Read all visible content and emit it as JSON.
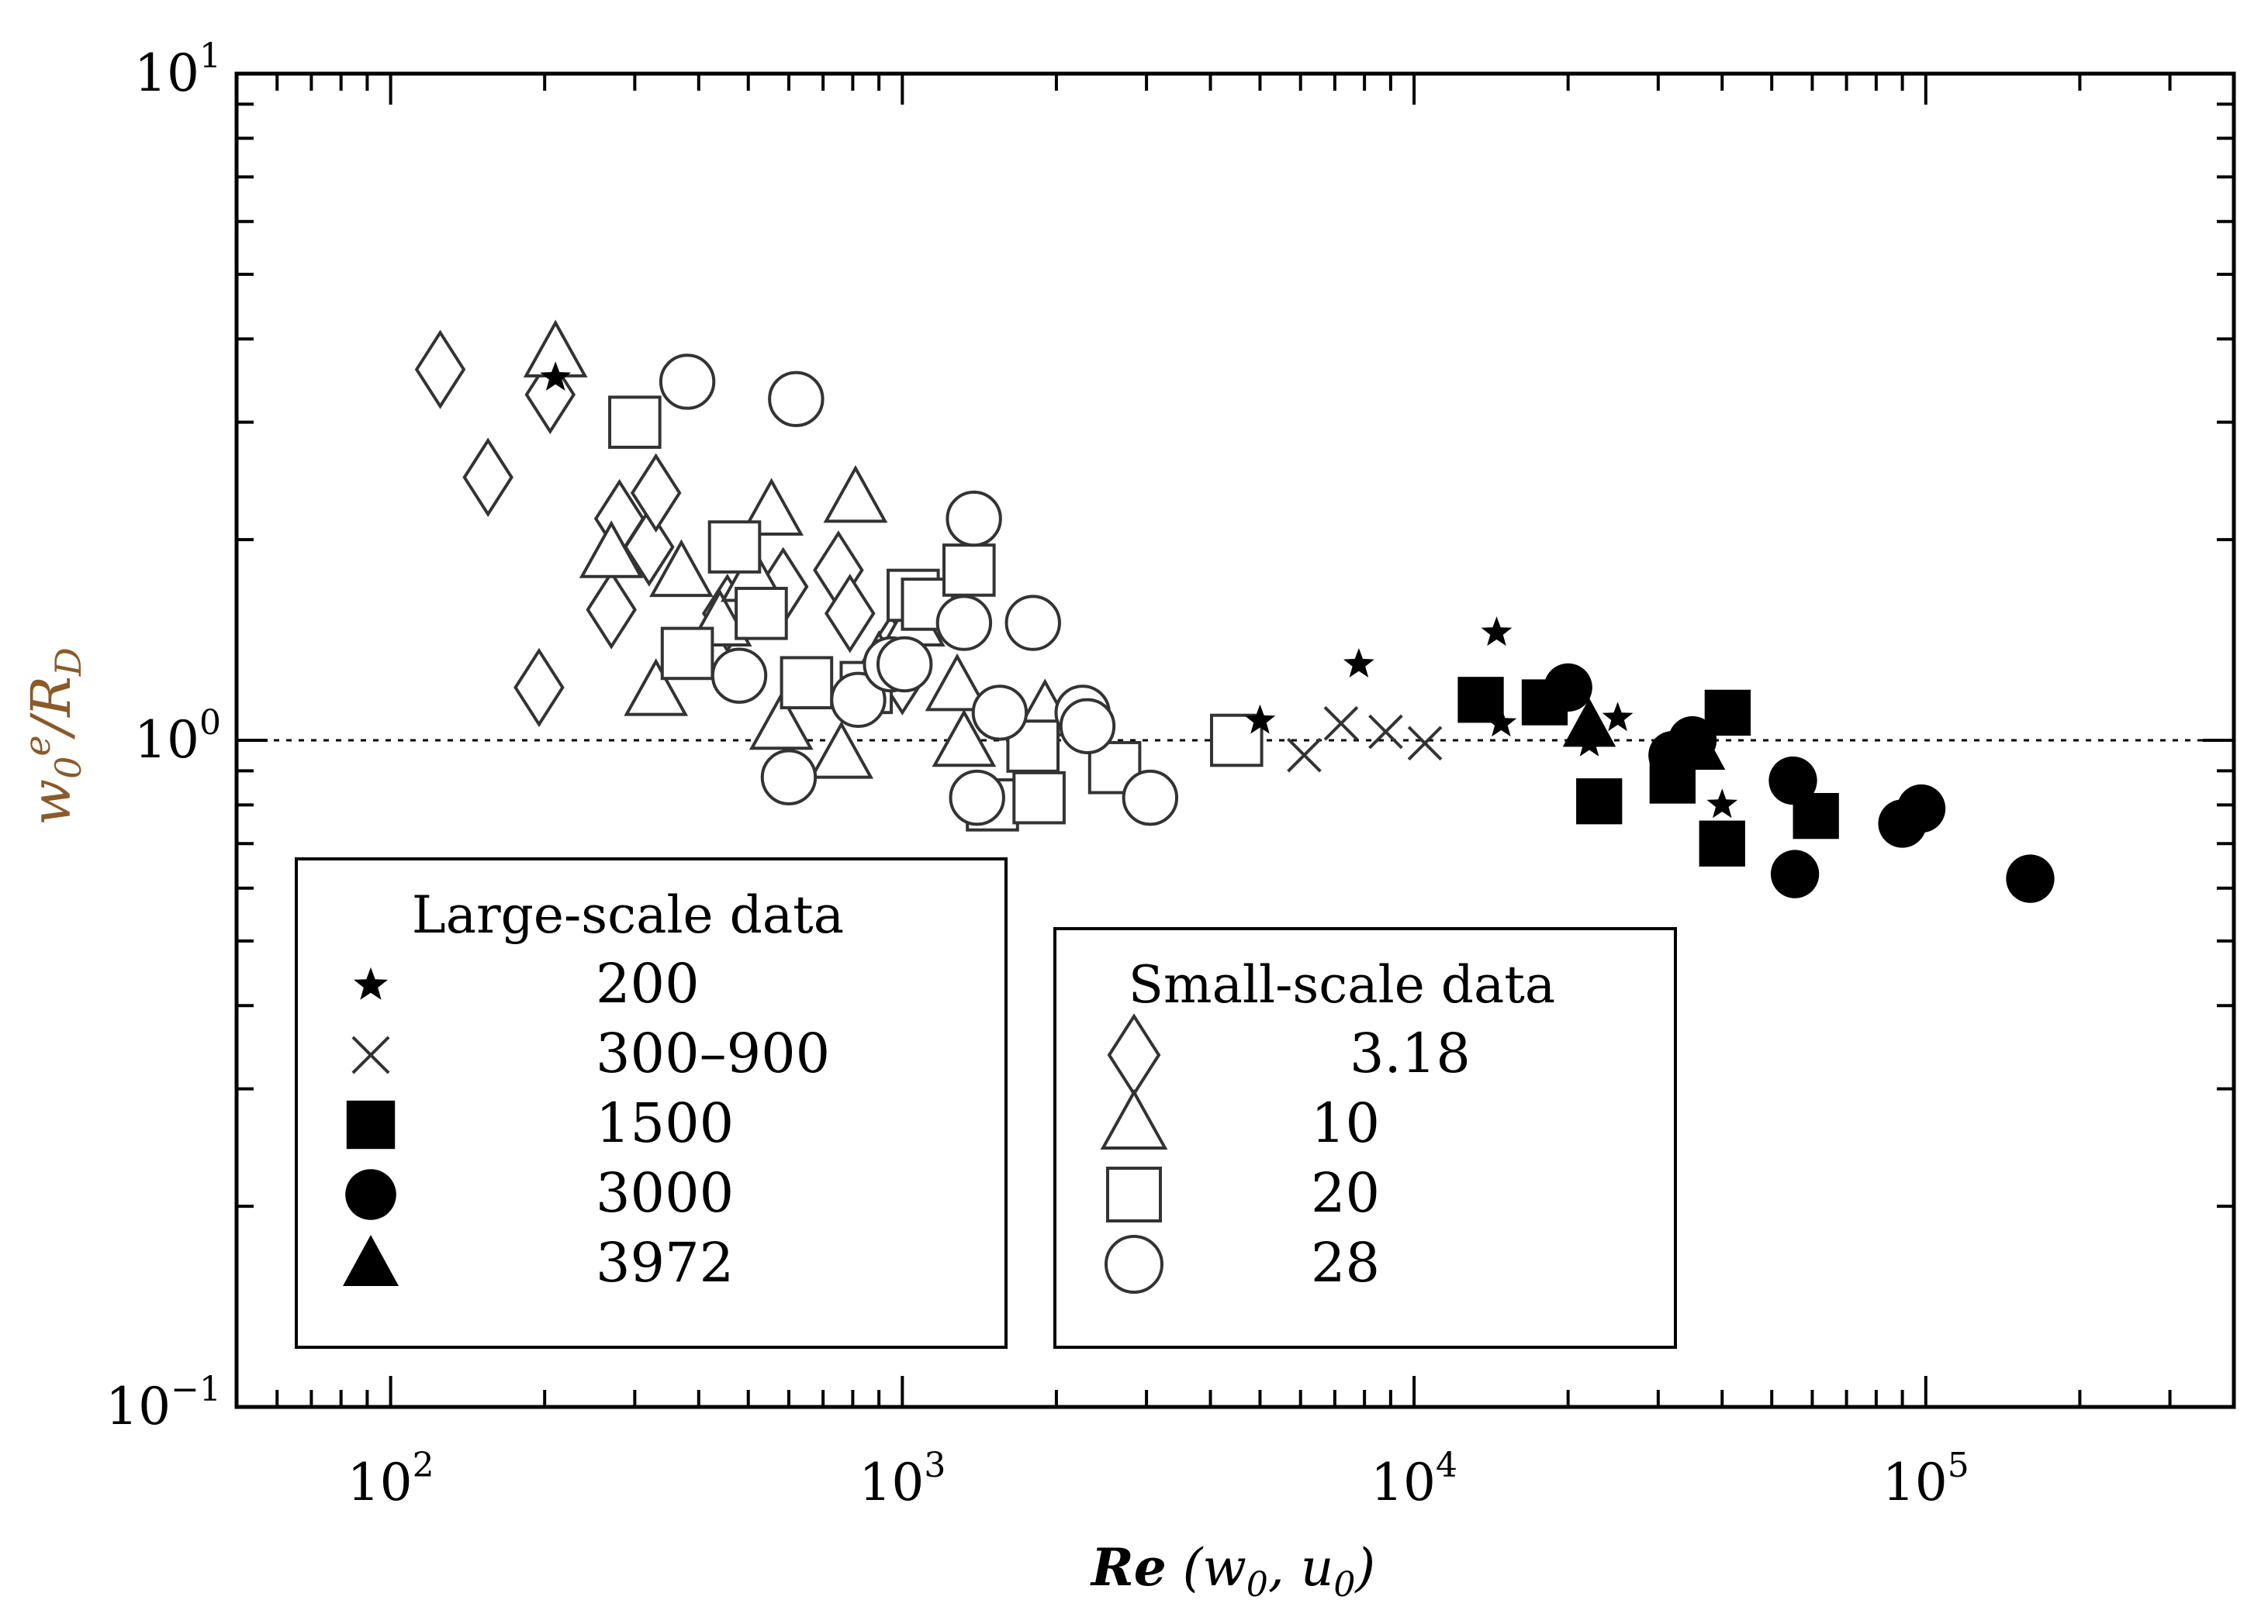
{
  "chart_data": {
    "type": "scatter",
    "title": "",
    "xlabel": "Re (w0, u0)",
    "ylabel": "w0e/RD",
    "xscale": "log",
    "yscale": "log",
    "xlim": [
      50,
      400000
    ],
    "ylim": [
      0.1,
      10
    ],
    "x_ticks": [
      {
        "base": "10",
        "exp": "2",
        "value": 100
      },
      {
        "base": "10",
        "exp": "3",
        "value": 1000
      },
      {
        "base": "10",
        "exp": "4",
        "value": 10000
      },
      {
        "base": "10",
        "exp": "5",
        "value": 100000
      }
    ],
    "y_ticks": [
      {
        "base": "10",
        "exp": "−1",
        "value": 0.1
      },
      {
        "base": "10",
        "exp": "0",
        "value": 1
      },
      {
        "base": "10",
        "exp": "1",
        "value": 10
      }
    ],
    "reference_line": {
      "y": 1.0,
      "style": "dotted"
    },
    "legend_large": {
      "title": "Large-scale data",
      "entries": [
        {
          "marker": "star",
          "label": "200"
        },
        {
          "marker": "cross",
          "label": "300–900"
        },
        {
          "marker": "square-filled",
          "label": "1500"
        },
        {
          "marker": "circle-filled",
          "label": "3000"
        },
        {
          "marker": "triangle-filled",
          "label": "3972"
        }
      ]
    },
    "legend_small": {
      "title": "Small-scale data",
      "entries": [
        {
          "marker": "diamond-open",
          "label": "3.18"
        },
        {
          "marker": "triangle-open",
          "label": "10"
        },
        {
          "marker": "square-open",
          "label": "20"
        },
        {
          "marker": "circle-open",
          "label": "28"
        }
      ]
    },
    "series": [
      {
        "name": "200",
        "marker": "star",
        "points": [
          [
            210,
            3.5
          ],
          [
            5000,
            1.07
          ],
          [
            7800,
            1.3
          ],
          [
            14500,
            1.45
          ],
          [
            14800,
            1.06
          ],
          [
            22000,
            0.99
          ],
          [
            25000,
            1.08
          ],
          [
            40000,
            0.8
          ]
        ]
      },
      {
        "name": "300–900",
        "marker": "cross",
        "points": [
          [
            6100,
            0.95
          ],
          [
            7200,
            1.06
          ],
          [
            8800,
            1.03
          ],
          [
            10500,
            0.99
          ]
        ]
      },
      {
        "name": "1500",
        "marker": "square-filled",
        "points": [
          [
            13500,
            1.15
          ],
          [
            18000,
            1.14
          ],
          [
            23000,
            0.81
          ],
          [
            32000,
            0.87
          ],
          [
            40000,
            0.7
          ],
          [
            41000,
            1.1
          ],
          [
            61000,
            0.77
          ]
        ]
      },
      {
        "name": "3000",
        "marker": "circle-filled",
        "points": [
          [
            20000,
            1.2
          ],
          [
            32000,
            0.95
          ],
          [
            35000,
            1.0
          ],
          [
            55000,
            0.87
          ],
          [
            55500,
            0.63
          ],
          [
            90000,
            0.75
          ],
          [
            98000,
            0.79
          ],
          [
            160000,
            0.62
          ]
        ]
      },
      {
        "name": "3972",
        "marker": "triangle-filled",
        "points": [
          [
            22000,
            1.05
          ],
          [
            36000,
            0.97
          ]
        ]
      },
      {
        "name": "3.18",
        "marker": "diamond-open",
        "points": [
          [
            125,
            3.6
          ],
          [
            155,
            2.48
          ],
          [
            205,
            3.3
          ],
          [
            195,
            1.2
          ],
          [
            270,
            1.57
          ],
          [
            280,
            2.15
          ],
          [
            320,
            1.95
          ],
          [
            330,
            2.35
          ],
          [
            455,
            1.55
          ],
          [
            490,
            1.6
          ],
          [
            585,
            1.7
          ],
          [
            750,
            1.8
          ],
          [
            790,
            1.55
          ],
          [
            950,
            1.35
          ],
          [
            1000,
            1.25
          ]
        ]
      },
      {
        "name": "10",
        "marker": "triangle-open",
        "points": [
          [
            210,
            3.8
          ],
          [
            270,
            1.9
          ],
          [
            330,
            1.18
          ],
          [
            370,
            1.78
          ],
          [
            440,
            1.5
          ],
          [
            510,
            1.75
          ],
          [
            555,
            2.2
          ],
          [
            580,
            1.05
          ],
          [
            760,
            0.95
          ],
          [
            810,
            2.3
          ],
          [
            900,
            1.3
          ],
          [
            1050,
            1.5
          ],
          [
            1280,
            1.2
          ],
          [
            1320,
            0.99
          ],
          [
            1900,
            1.1
          ]
        ]
      },
      {
        "name": "20",
        "marker": "square-open",
        "points": [
          [
            300,
            3.0
          ],
          [
            380,
            1.35
          ],
          [
            470,
            1.95
          ],
          [
            530,
            1.55
          ],
          [
            650,
            1.22
          ],
          [
            850,
            1.2
          ],
          [
            1050,
            1.65
          ],
          [
            1120,
            1.6
          ],
          [
            1350,
            1.8
          ],
          [
            1500,
            0.8
          ],
          [
            1800,
            0.98
          ],
          [
            1850,
            0.82
          ],
          [
            2600,
            0.91
          ],
          [
            4500,
            1.0
          ]
        ]
      },
      {
        "name": "28",
        "marker": "circle-open",
        "points": [
          [
            380,
            3.45
          ],
          [
            480,
            1.25
          ],
          [
            600,
            0.88
          ],
          [
            620,
            3.25
          ],
          [
            820,
            1.15
          ],
          [
            950,
            1.3
          ],
          [
            1010,
            1.3
          ],
          [
            1320,
            1.5
          ],
          [
            1380,
            2.15
          ],
          [
            1400,
            0.82
          ],
          [
            1550,
            1.1
          ],
          [
            1800,
            1.5
          ],
          [
            2250,
            1.1
          ],
          [
            2300,
            1.05
          ],
          [
            3050,
            0.82
          ]
        ]
      }
    ]
  }
}
